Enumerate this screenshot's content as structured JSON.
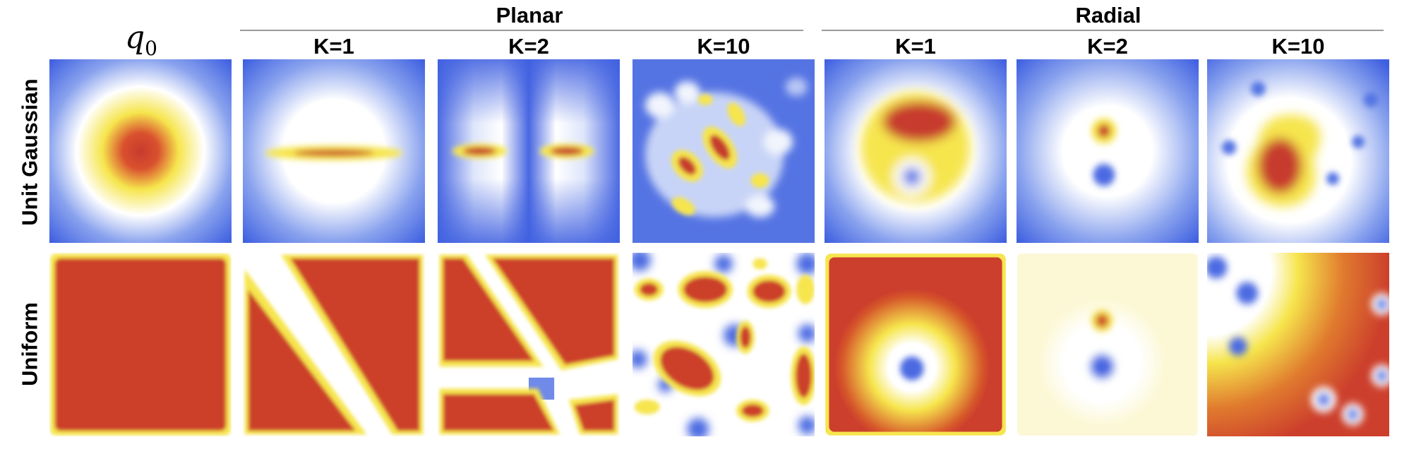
{
  "groups": {
    "planar": "Planar",
    "radial": "Radial"
  },
  "columns": {
    "q0_symbol": "q",
    "q0_subscript": "0",
    "planar": [
      "K=1",
      "K=2",
      "K=10"
    ],
    "radial": [
      "K=1",
      "K=2",
      "K=10"
    ]
  },
  "rows": [
    "Unit Gaussian",
    "Uniform"
  ],
  "colormap": {
    "low": "#3b5fe0",
    "mid": "#ffffff",
    "high_mid": "#f7ef4f",
    "high": "#cc3a2b"
  }
}
